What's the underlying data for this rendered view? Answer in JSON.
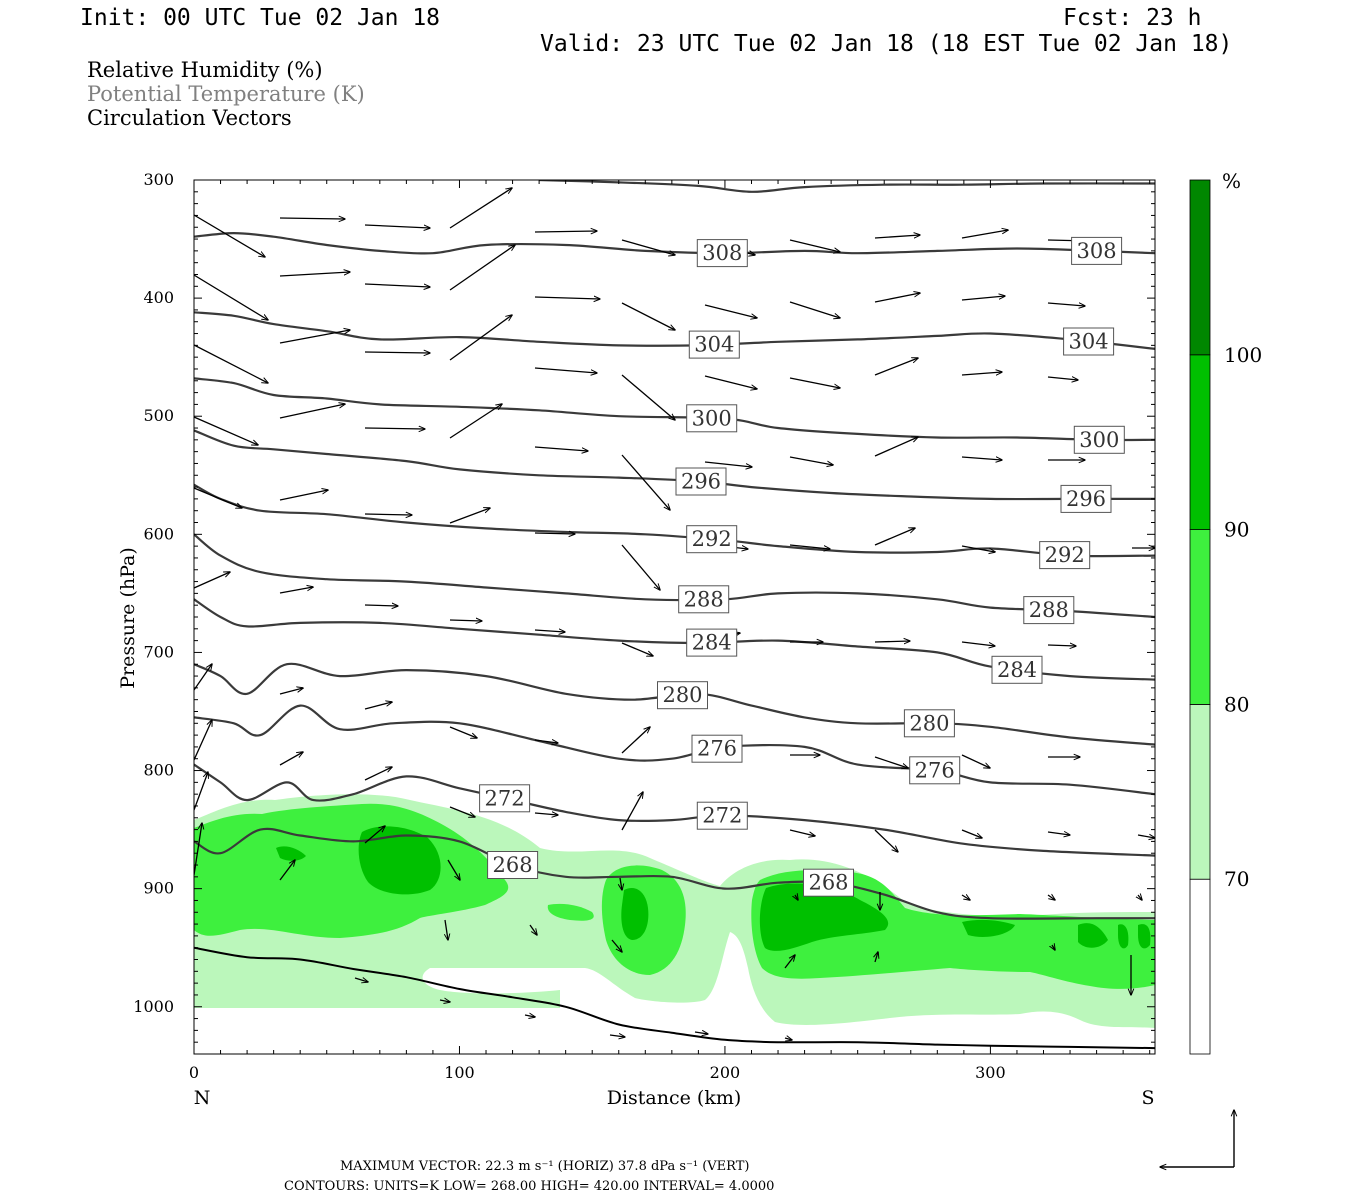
{
  "header": {
    "init": "Init: 00 UTC Tue 02 Jan 18",
    "fcst": "Fcst:   23 h",
    "valid": "Valid: 23 UTC Tue 02 Jan 18 (18 EST Tue 02 Jan 18)"
  },
  "legend": [
    {
      "text": "Relative Humidity (%)",
      "color": "#000000"
    },
    {
      "text": "Potential Temperature (K)",
      "color": "#808080"
    },
    {
      "text": "Circulation Vectors",
      "color": "#000000"
    }
  ],
  "chart_data": {
    "type": "contour-cross-section",
    "xlabel": "Distance (km)",
    "ylabel": "Pressure (hPa)",
    "xlim": [
      0,
      362
    ],
    "ylim": [
      300,
      1040
    ],
    "x_ticks": [
      0,
      100,
      200,
      300
    ],
    "y_ticks": [
      300,
      400,
      500,
      600,
      700,
      800,
      900,
      1000
    ],
    "x_end_labels": {
      "left": "N",
      "right": "S"
    },
    "colorbar": {
      "unit": "%",
      "levels": [
        {
          "label": "70",
          "value": 70,
          "color": "#ffffff"
        },
        {
          "label": "80",
          "value": 80,
          "color": "#bbf7bb"
        },
        {
          "label": "90",
          "value": 90,
          "color": "#3ef03e"
        },
        {
          "label": "100",
          "value": 100,
          "color": "#00c000"
        },
        {
          "label": "",
          "value": 110,
          "color": "#008700"
        }
      ]
    },
    "theta_contours": [
      {
        "value": 268,
        "label": "268",
        "points": [
          [
            0,
            860
          ],
          [
            10,
            870
          ],
          [
            25,
            850
          ],
          [
            40,
            855
          ],
          [
            60,
            860
          ],
          [
            80,
            855
          ],
          [
            100,
            860
          ],
          [
            120,
            880
          ],
          [
            140,
            890
          ],
          [
            160,
            890
          ],
          [
            180,
            890
          ],
          [
            200,
            900
          ],
          [
            220,
            895
          ],
          [
            240,
            895
          ],
          [
            260,
            905
          ],
          [
            280,
            920
          ],
          [
            300,
            925
          ],
          [
            340,
            925
          ],
          [
            362,
            925
          ]
        ]
      },
      {
        "value": 272,
        "label": "272",
        "points": [
          [
            0,
            795
          ],
          [
            10,
            810
          ],
          [
            20,
            825
          ],
          [
            35,
            810
          ],
          [
            45,
            825
          ],
          [
            60,
            820
          ],
          [
            80,
            805
          ],
          [
            100,
            815
          ],
          [
            120,
            825
          ],
          [
            140,
            835
          ],
          [
            160,
            842
          ],
          [
            180,
            842
          ],
          [
            200,
            838
          ],
          [
            230,
            842
          ],
          [
            260,
            850
          ],
          [
            290,
            862
          ],
          [
            320,
            868
          ],
          [
            362,
            872
          ]
        ]
      },
      {
        "value": 276,
        "label": "276",
        "points": [
          [
            0,
            755
          ],
          [
            15,
            760
          ],
          [
            25,
            770
          ],
          [
            40,
            745
          ],
          [
            55,
            765
          ],
          [
            75,
            760
          ],
          [
            100,
            760
          ],
          [
            130,
            775
          ],
          [
            160,
            790
          ],
          [
            180,
            790
          ],
          [
            200,
            780
          ],
          [
            230,
            780
          ],
          [
            250,
            795
          ],
          [
            280,
            800
          ],
          [
            300,
            810
          ],
          [
            330,
            812
          ],
          [
            362,
            820
          ]
        ]
      },
      {
        "value": 280,
        "label": "280",
        "points": [
          [
            0,
            710
          ],
          [
            10,
            720
          ],
          [
            20,
            735
          ],
          [
            35,
            710
          ],
          [
            55,
            720
          ],
          [
            80,
            715
          ],
          [
            110,
            720
          ],
          [
            140,
            735
          ],
          [
            165,
            740
          ],
          [
            190,
            735
          ],
          [
            210,
            745
          ],
          [
            230,
            755
          ],
          [
            250,
            760
          ],
          [
            280,
            760
          ],
          [
            300,
            763
          ],
          [
            330,
            772
          ],
          [
            362,
            778
          ]
        ]
      },
      {
        "value": 284,
        "label": "284",
        "points": [
          [
            0,
            655
          ],
          [
            10,
            670
          ],
          [
            20,
            678
          ],
          [
            40,
            675
          ],
          [
            70,
            675
          ],
          [
            100,
            680
          ],
          [
            130,
            685
          ],
          [
            160,
            690
          ],
          [
            190,
            692
          ],
          [
            220,
            690
          ],
          [
            250,
            695
          ],
          [
            280,
            700
          ],
          [
            300,
            712
          ],
          [
            330,
            720
          ],
          [
            362,
            723
          ]
        ]
      },
      {
        "value": 288,
        "label": "288",
        "points": [
          [
            0,
            600
          ],
          [
            10,
            618
          ],
          [
            25,
            632
          ],
          [
            50,
            638
          ],
          [
            80,
            640
          ],
          [
            110,
            645
          ],
          [
            140,
            650
          ],
          [
            170,
            655
          ],
          [
            200,
            655
          ],
          [
            220,
            650
          ],
          [
            250,
            650
          ],
          [
            280,
            655
          ],
          [
            300,
            662
          ],
          [
            330,
            665
          ],
          [
            362,
            670
          ]
        ]
      },
      {
        "value": 292,
        "label": "292",
        "points": [
          [
            0,
            558
          ],
          [
            10,
            570
          ],
          [
            25,
            580
          ],
          [
            50,
            583
          ],
          [
            80,
            590
          ],
          [
            110,
            595
          ],
          [
            140,
            598
          ],
          [
            170,
            600
          ],
          [
            200,
            605
          ],
          [
            220,
            610
          ],
          [
            250,
            615
          ],
          [
            280,
            615
          ],
          [
            300,
            612
          ],
          [
            330,
            618
          ],
          [
            362,
            618
          ]
        ]
      },
      {
        "value": 296,
        "label": "296",
        "points": [
          [
            0,
            512
          ],
          [
            15,
            525
          ],
          [
            30,
            528
          ],
          [
            50,
            532
          ],
          [
            80,
            538
          ],
          [
            100,
            545
          ],
          [
            130,
            550
          ],
          [
            160,
            552
          ],
          [
            190,
            555
          ],
          [
            210,
            560
          ],
          [
            240,
            565
          ],
          [
            270,
            568
          ],
          [
            300,
            570
          ],
          [
            330,
            570
          ],
          [
            362,
            570
          ]
        ]
      },
      {
        "value": 300,
        "label": "300",
        "points": [
          [
            0,
            468
          ],
          [
            15,
            472
          ],
          [
            30,
            482
          ],
          [
            50,
            485
          ],
          [
            70,
            490
          ],
          [
            100,
            492
          ],
          [
            130,
            495
          ],
          [
            160,
            500
          ],
          [
            200,
            502
          ],
          [
            220,
            510
          ],
          [
            250,
            515
          ],
          [
            280,
            518
          ],
          [
            310,
            518
          ],
          [
            340,
            520
          ],
          [
            362,
            520
          ]
        ]
      },
      {
        "value": 304,
        "label": "304",
        "points": [
          [
            0,
            412
          ],
          [
            15,
            415
          ],
          [
            30,
            422
          ],
          [
            50,
            428
          ],
          [
            70,
            435
          ],
          [
            100,
            433
          ],
          [
            130,
            437
          ],
          [
            160,
            440
          ],
          [
            190,
            440
          ],
          [
            220,
            437
          ],
          [
            250,
            435
          ],
          [
            280,
            432
          ],
          [
            300,
            430
          ],
          [
            330,
            435
          ],
          [
            362,
            443
          ]
        ]
      },
      {
        "value": 308,
        "label": "308",
        "points": [
          [
            0,
            348
          ],
          [
            15,
            345
          ],
          [
            30,
            348
          ],
          [
            50,
            355
          ],
          [
            70,
            360
          ],
          [
            90,
            362
          ],
          [
            110,
            355
          ],
          [
            140,
            355
          ],
          [
            170,
            360
          ],
          [
            200,
            362
          ],
          [
            230,
            360
          ],
          [
            250,
            362
          ],
          [
            280,
            360
          ],
          [
            310,
            358
          ],
          [
            340,
            360
          ],
          [
            362,
            362
          ]
        ]
      },
      {
        "value": 312,
        "label": "",
        "points": [
          [
            130,
            300
          ],
          [
            160,
            302
          ],
          [
            190,
            305
          ],
          [
            210,
            310
          ],
          [
            230,
            306
          ],
          [
            260,
            304
          ],
          [
            290,
            304
          ],
          [
            320,
            303
          ],
          [
            362,
            303
          ]
        ]
      }
    ],
    "surface_line": [
      [
        0,
        950
      ],
      [
        20,
        958
      ],
      [
        40,
        960
      ],
      [
        60,
        968
      ],
      [
        80,
        975
      ],
      [
        100,
        985
      ],
      [
        120,
        992
      ],
      [
        140,
        1000
      ],
      [
        160,
        1015
      ],
      [
        180,
        1022
      ],
      [
        200,
        1028
      ],
      [
        220,
        1030
      ],
      [
        250,
        1030
      ],
      [
        280,
        1032
      ],
      [
        300,
        1033
      ],
      [
        330,
        1034
      ],
      [
        362,
        1035
      ]
    ],
    "vector_scale_note": "MAXIMUM VECTOR:  22.3 m s⁻¹ (HORIZ)          37.8 dPa s⁻¹ (VERT)",
    "contour_note": "CONTOURS:  UNITS=K  LOW=   268.00          HIGH=   420.00          INTERVAL=     4.0000"
  }
}
